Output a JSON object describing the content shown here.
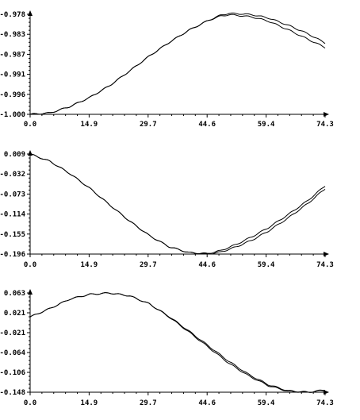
{
  "chart_data": [
    {
      "type": "line",
      "x_ticks": [
        "0.0",
        "14.9",
        "29.7",
        "44.6",
        "59.4",
        "74.3"
      ],
      "y_ticks": [
        "-0.978",
        "-0.983",
        "-0.987",
        "-0.991",
        "-0.996",
        "-1.000"
      ],
      "xlim": [
        0,
        74.3
      ],
      "ylim": [
        -1.0,
        -0.978
      ],
      "x": [
        0,
        5,
        10,
        15,
        20,
        25,
        30,
        35,
        40,
        45,
        48,
        50,
        53,
        56,
        60,
        65,
        70,
        74.3
      ],
      "series": [
        {
          "values": [
            -1.0,
            -0.9997,
            -0.9983,
            -0.9963,
            -0.9937,
            -0.9905,
            -0.9872,
            -0.9842,
            -0.9815,
            -0.9793,
            -0.9784,
            -0.9781,
            -0.9783,
            -0.9786,
            -0.9795,
            -0.9814,
            -0.9835,
            -0.9853
          ]
        },
        {
          "values": [
            -1.0,
            -0.9997,
            -0.9983,
            -0.9963,
            -0.9937,
            -0.9905,
            -0.9872,
            -0.9842,
            -0.9815,
            -0.9793,
            -0.9782,
            -0.9778,
            -0.9779,
            -0.9781,
            -0.9788,
            -0.9804,
            -0.9823,
            -0.9843
          ]
        }
      ]
    },
    {
      "type": "line",
      "x_ticks": [
        "0.0",
        "14.9",
        "29.7",
        "44.6",
        "59.4",
        "74.3"
      ],
      "y_ticks": [
        "0.009",
        "-0.032",
        "-0.073",
        "-0.114",
        "-0.155",
        "-0.196"
      ],
      "xlim": [
        0,
        74.3
      ],
      "ylim": [
        -0.196,
        0.009
      ],
      "x": [
        0,
        5,
        10,
        15,
        20,
        25,
        30,
        35,
        40,
        44.6,
        48,
        52,
        56,
        60,
        65,
        70,
        74.3
      ],
      "series": [
        {
          "values": [
            0.009,
            -0.006,
            -0.031,
            -0.061,
            -0.095,
            -0.128,
            -0.158,
            -0.181,
            -0.193,
            -0.196,
            -0.192,
            -0.181,
            -0.167,
            -0.149,
            -0.122,
            -0.092,
            -0.062
          ]
        },
        {
          "values": [
            0.009,
            -0.006,
            -0.031,
            -0.061,
            -0.095,
            -0.128,
            -0.158,
            -0.181,
            -0.193,
            -0.195,
            -0.189,
            -0.176,
            -0.16,
            -0.142,
            -0.115,
            -0.086,
            -0.056
          ]
        }
      ]
    },
    {
      "type": "line",
      "x_ticks": [
        "0.0",
        "14.9",
        "29.7",
        "44.6",
        "59.4",
        "74.3"
      ],
      "y_ticks": [
        "0.063",
        "0.021",
        "-0.021",
        "-0.064",
        "-0.106",
        "-0.148"
      ],
      "xlim": [
        0,
        74.3
      ],
      "ylim": [
        -0.148,
        0.063
      ],
      "x": [
        0,
        5,
        10,
        15,
        20,
        25,
        30,
        35,
        40,
        45,
        50,
        55,
        60,
        65,
        70,
        74.3
      ],
      "series": [
        {
          "values": [
            0.012,
            0.03,
            0.05,
            0.06,
            0.063,
            0.057,
            0.04,
            0.013,
            -0.018,
            -0.05,
            -0.082,
            -0.11,
            -0.132,
            -0.145,
            -0.148,
            -0.144
          ]
        },
        {
          "values": [
            0.012,
            0.03,
            0.05,
            0.06,
            0.063,
            0.057,
            0.04,
            0.012,
            -0.02,
            -0.053,
            -0.086,
            -0.113,
            -0.134,
            -0.146,
            -0.148,
            -0.143
          ]
        }
      ]
    }
  ]
}
